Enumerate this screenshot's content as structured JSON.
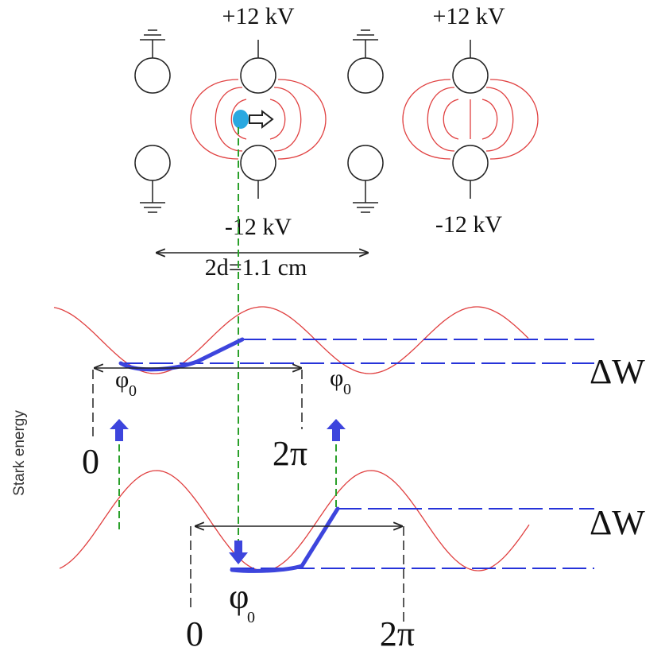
{
  "electrodes": {
    "left_top_voltage": "+12 kV",
    "left_bottom_voltage": "-12 kV",
    "right_top_voltage": "+12 kV",
    "right_bottom_voltage": "-12 kV",
    "spacing": "2d=1.1 cm"
  },
  "energy": {
    "axis_label": "Stark energy",
    "upper": {
      "delta": "ΔW",
      "zero": "0",
      "two_pi": "2π",
      "phase_left": {
        "symbol": "φ",
        "subscript": "0"
      },
      "phase_right": {
        "symbol": "φ",
        "subscript": "0"
      }
    },
    "lower": {
      "delta": "ΔW",
      "zero": "0",
      "two_pi": "2π",
      "phase": {
        "symbol": "φ",
        "subscript": "0"
      }
    }
  }
}
